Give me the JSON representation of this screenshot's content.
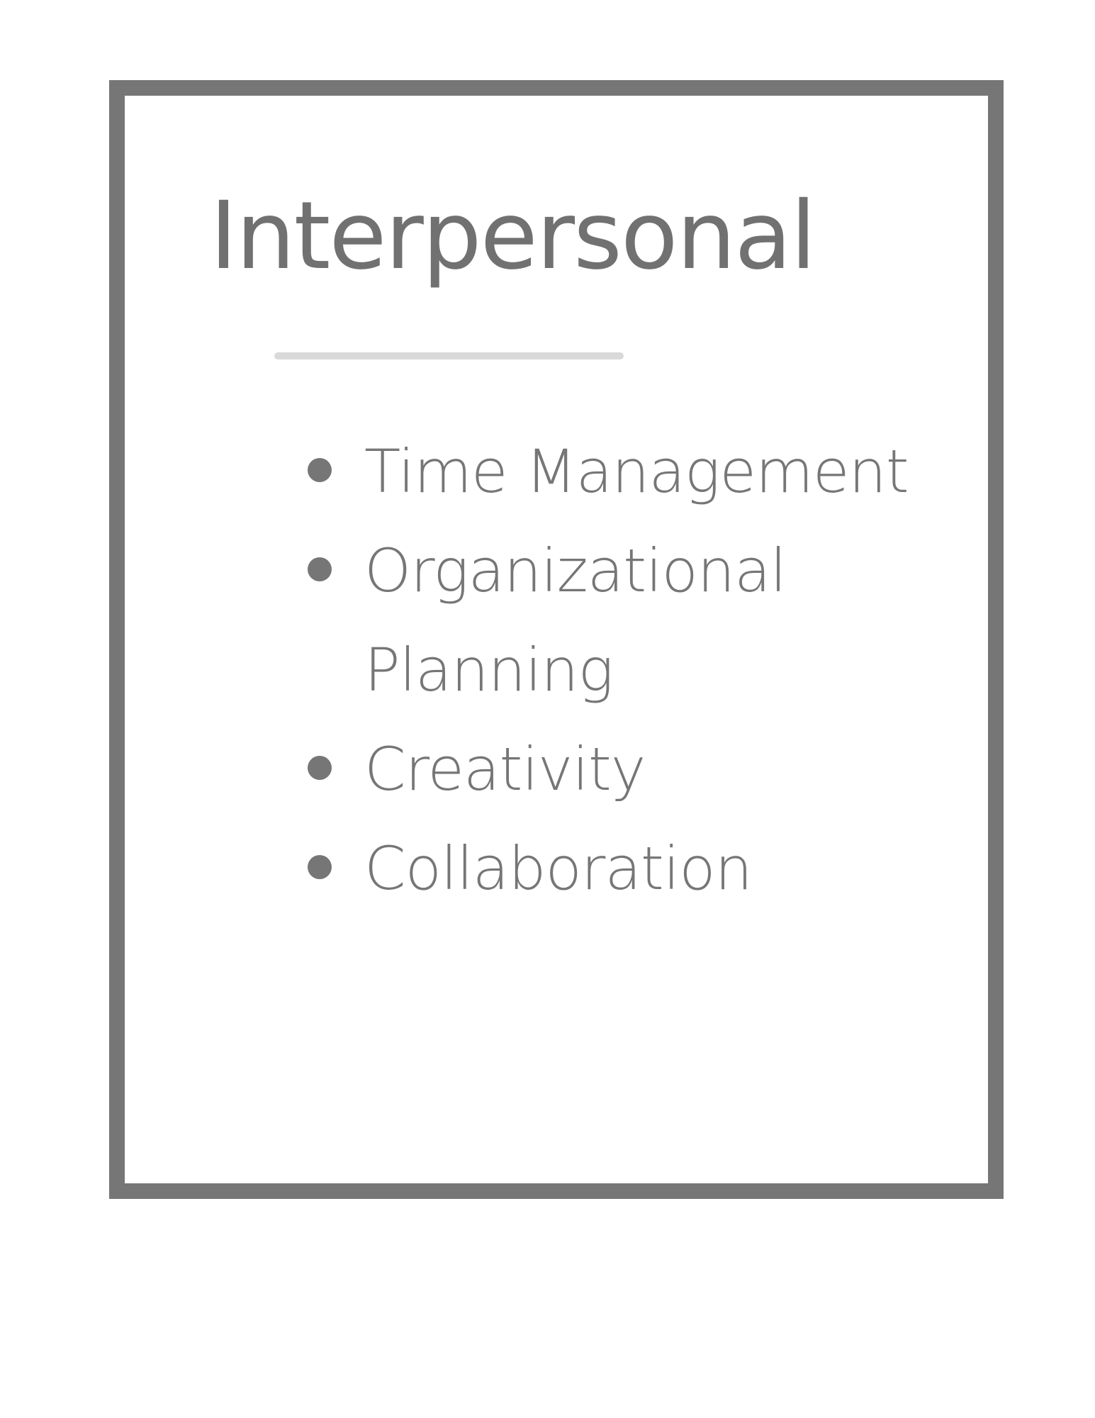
{
  "card": {
    "title": "Interpersonal",
    "skills": [
      {
        "label": "Time Management"
      },
      {
        "label": "Organizational Planning"
      },
      {
        "label": "Creativity"
      },
      {
        "label": "Collaboration"
      }
    ]
  },
  "colors": {
    "frame": "#767676",
    "title": "#717171",
    "text": "#767676",
    "rule": "#d9d9d9",
    "background": "#ffffff"
  }
}
